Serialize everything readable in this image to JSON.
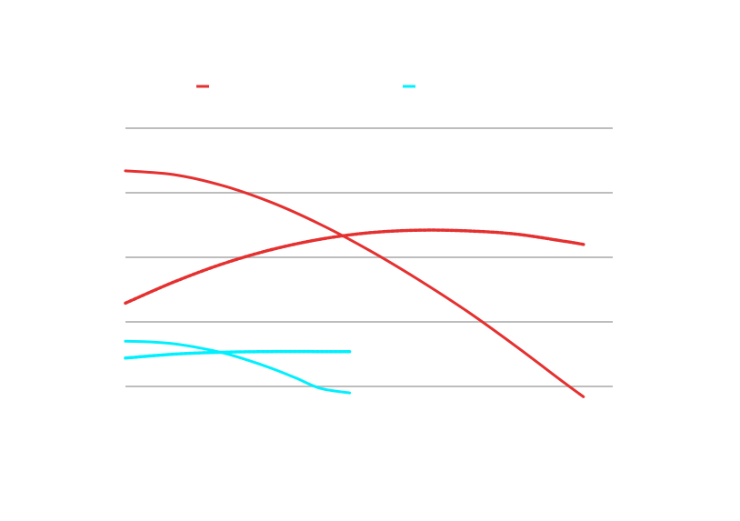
{
  "chart_data": {
    "type": "line",
    "title": "",
    "xlabel": "",
    "ylabel": "",
    "grid": true,
    "legend_position": "top",
    "xlim": [
      0,
      100
    ],
    "ylim": [
      0,
      4
    ],
    "gridlines_y": [
      0,
      1,
      2,
      3,
      4
    ],
    "series": [
      {
        "color": "#e53030",
        "style": "solid",
        "x": [
          0,
          10,
          20,
          30,
          40,
          50,
          60,
          70,
          80,
          90,
          94
        ],
        "y": [
          3.34,
          3.28,
          3.11,
          2.85,
          2.51,
          2.11,
          1.66,
          1.17,
          0.63,
          0.06,
          -0.16
        ]
      },
      {
        "color": "#e53030",
        "style": "dotted",
        "x": [
          0,
          10,
          20,
          30,
          40,
          50,
          60,
          70,
          80,
          90,
          94
        ],
        "y": [
          1.29,
          1.62,
          1.9,
          2.12,
          2.28,
          2.38,
          2.42,
          2.41,
          2.36,
          2.25,
          2.2
        ]
      },
      {
        "color": "#00f0ff",
        "style": "solid",
        "x": [
          0,
          5,
          10,
          15,
          20,
          25,
          30,
          35,
          40,
          46
        ],
        "y": [
          0.7,
          0.69,
          0.66,
          0.6,
          0.52,
          0.41,
          0.28,
          0.13,
          -0.03,
          -0.1
        ]
      },
      {
        "color": "#00f0ff",
        "style": "dotted",
        "x": [
          0,
          10,
          20,
          30,
          40,
          46
        ],
        "y": [
          0.44,
          0.5,
          0.53,
          0.54,
          0.54,
          0.54
        ]
      }
    ],
    "legend": [
      {
        "color": "#e53030",
        "label": ""
      },
      {
        "color": "#00f0ff",
        "label": ""
      }
    ]
  }
}
